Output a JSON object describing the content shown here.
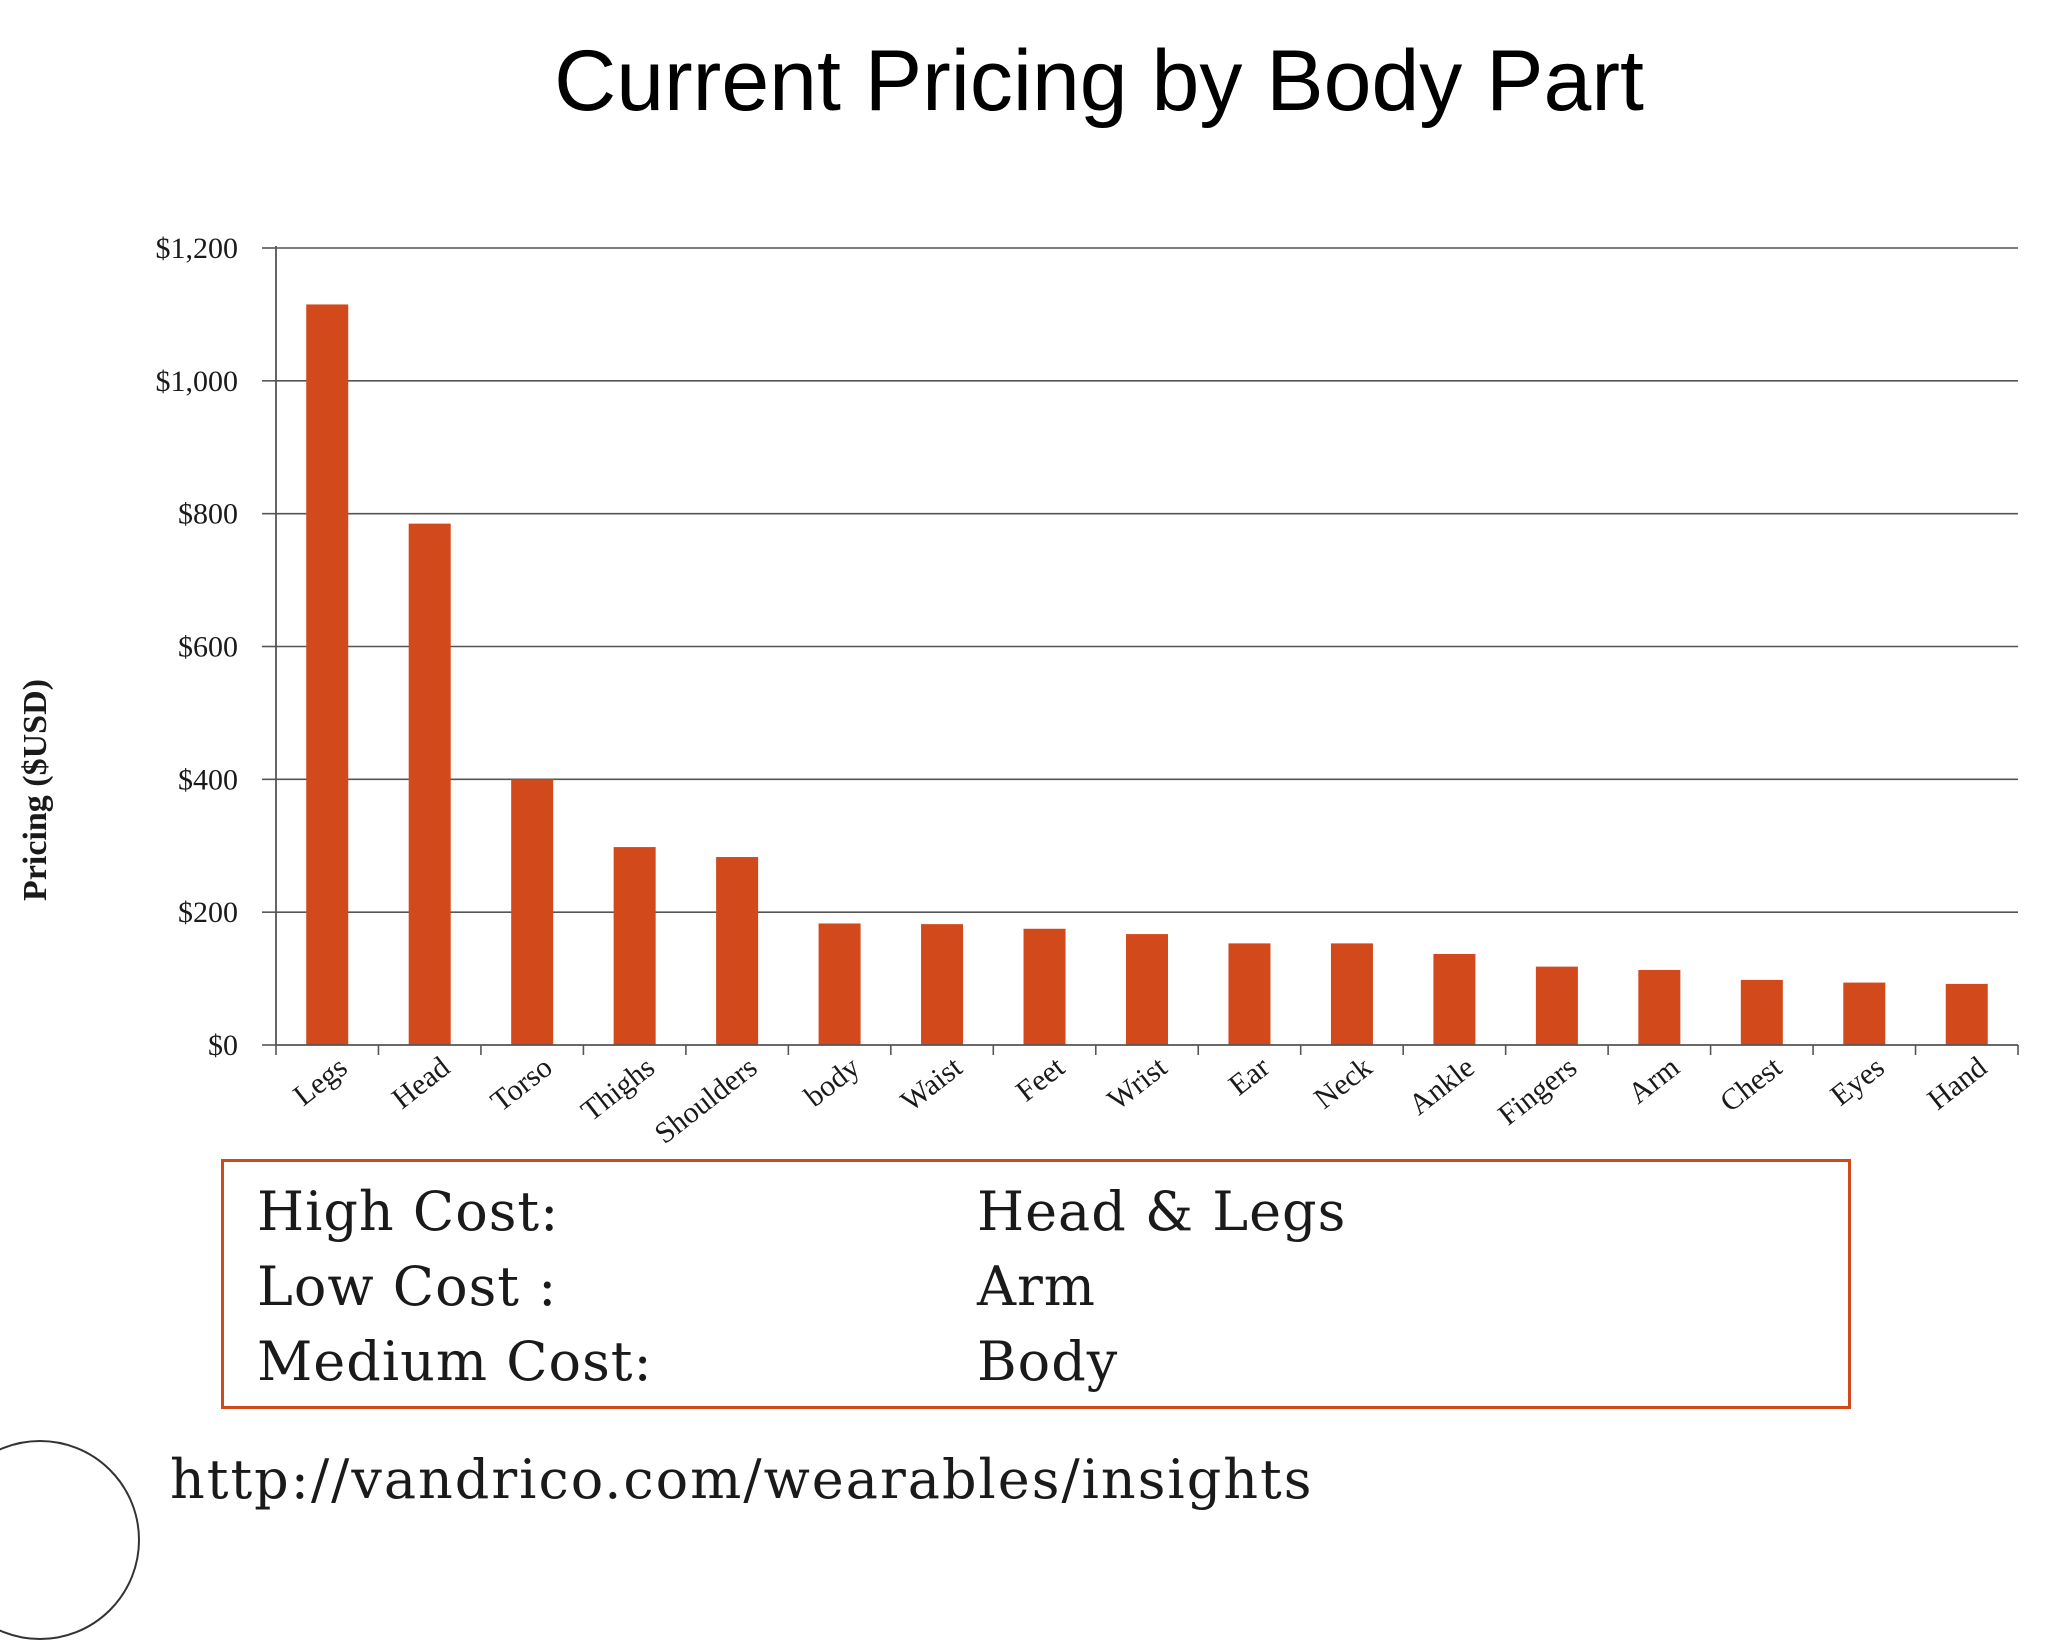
{
  "slide": {
    "title": "Current Pricing by Body Part"
  },
  "summary": {
    "rows": [
      {
        "label": "High Cost:",
        "value": "Head  & Legs"
      },
      {
        "label": "Low Cost :",
        "value": "Arm"
      },
      {
        "label": "Medium Cost:",
        "value": "Body"
      }
    ]
  },
  "source": {
    "url": "http://vandrico.com/wearables/insights"
  },
  "chart_data": {
    "type": "bar",
    "title": "Current Pricing by Body Part",
    "xlabel": "",
    "ylabel": "Pricing ($USD)",
    "ylim": [
      0,
      1200
    ],
    "yticks": [
      0,
      200,
      400,
      600,
      800,
      1000,
      1200
    ],
    "ytick_labels": [
      "$0",
      "$200",
      "$400",
      "$600",
      "$800",
      "$1,000",
      "$1,200"
    ],
    "grid": true,
    "bar_color": "#d24a1c",
    "categories": [
      "Legs",
      "Head",
      "Torso",
      "Thighs",
      "Shoulders",
      "body",
      "Waist",
      "Feet",
      "Wrist",
      "Ear",
      "Neck",
      "Ankle",
      "Fingers",
      "Arm",
      "Chest",
      "Eyes",
      "Hand"
    ],
    "values": [
      1115,
      785,
      400,
      298,
      283,
      183,
      182,
      175,
      167,
      153,
      153,
      137,
      118,
      113,
      98,
      94,
      92
    ]
  }
}
